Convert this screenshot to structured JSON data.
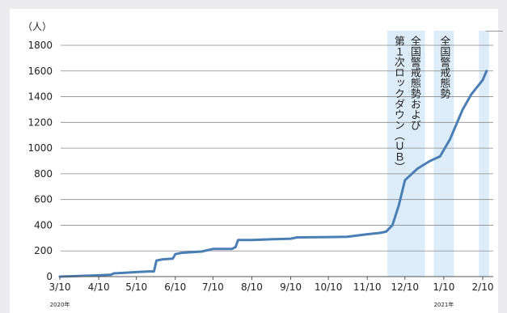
{
  "chart_data": {
    "type": "line",
    "title": "",
    "xlabel": "",
    "ylabel": "（人）",
    "ylim": [
      0,
      1800
    ],
    "yticks": [
      0,
      200,
      400,
      600,
      800,
      1000,
      1200,
      1400,
      1600,
      1800
    ],
    "xticks": [
      {
        "date": "2020-03-10",
        "label": "3/10"
      },
      {
        "date": "2020-04-10",
        "label": "4/10"
      },
      {
        "date": "2020-05-10",
        "label": "5/10"
      },
      {
        "date": "2020-06-10",
        "label": "6/10"
      },
      {
        "date": "2020-07-10",
        "label": "7/10"
      },
      {
        "date": "2020-08-10",
        "label": "8/10"
      },
      {
        "date": "2020-09-10",
        "label": "9/10"
      },
      {
        "date": "2020-10-10",
        "label": "10/10"
      },
      {
        "date": "2020-11-10",
        "label": "11/10"
      },
      {
        "date": "2020-12-10",
        "label": "12/10"
      },
      {
        "date": "2021-01-10",
        "label": "1/10"
      },
      {
        "date": "2021-02-10",
        "label": "2/10"
      }
    ],
    "year_labels": [
      {
        "date": "2020-03-10",
        "label": "2020年"
      },
      {
        "date": "2021-01-10",
        "label": "2021年"
      }
    ],
    "grid": true,
    "bands": [
      {
        "start": "2020-11-26",
        "end": "2020-12-26",
        "lines": [
          "全国警戒態勢および",
          "第１次ロックダウン（ＵＢ）"
        ]
      },
      {
        "start": "2021-01-02",
        "end": "2021-01-18",
        "lines": [
          "全国警戒態勢"
        ]
      },
      {
        "start": "2021-02-07",
        "end": "2021-02-15",
        "lines": []
      }
    ],
    "series": [
      {
        "color": "#4a7fb5",
        "points": [
          [
            "2020-03-10",
            0
          ],
          [
            "2020-03-25",
            5
          ],
          [
            "2020-04-10",
            10
          ],
          [
            "2020-04-20",
            15
          ],
          [
            "2020-04-22",
            25
          ],
          [
            "2020-05-01",
            30
          ],
          [
            "2020-05-10",
            35
          ],
          [
            "2020-05-20",
            40
          ],
          [
            "2020-05-24",
            40
          ],
          [
            "2020-05-26",
            125
          ],
          [
            "2020-05-31",
            135
          ],
          [
            "2020-06-08",
            140
          ],
          [
            "2020-06-10",
            175
          ],
          [
            "2020-06-15",
            185
          ],
          [
            "2020-07-01",
            195
          ],
          [
            "2020-07-10",
            215
          ],
          [
            "2020-07-25",
            215
          ],
          [
            "2020-07-28",
            230
          ],
          [
            "2020-07-30",
            285
          ],
          [
            "2020-08-10",
            285
          ],
          [
            "2020-08-25",
            290
          ],
          [
            "2020-09-10",
            295
          ],
          [
            "2020-09-15",
            305
          ],
          [
            "2020-10-10",
            308
          ],
          [
            "2020-10-25",
            310
          ],
          [
            "2020-11-10",
            330
          ],
          [
            "2020-11-20",
            340
          ],
          [
            "2020-11-25",
            350
          ],
          [
            "2020-11-30",
            400
          ],
          [
            "2020-12-05",
            550
          ],
          [
            "2020-12-10",
            750
          ],
          [
            "2020-12-20",
            840
          ],
          [
            "2020-12-30",
            900
          ],
          [
            "2021-01-07",
            935
          ],
          [
            "2021-01-15",
            1070
          ],
          [
            "2021-01-25",
            1300
          ],
          [
            "2021-02-01",
            1420
          ],
          [
            "2021-02-10",
            1530
          ],
          [
            "2021-02-13",
            1600
          ]
        ]
      }
    ]
  }
}
